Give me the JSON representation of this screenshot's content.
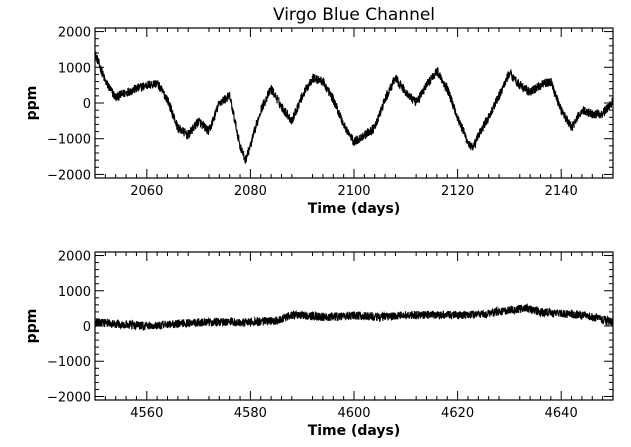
{
  "chart_data": [
    {
      "type": "line",
      "title": "Virgo Blue Channel",
      "xlabel": "Time (days)",
      "ylabel": "ppm",
      "xlim": [
        2050,
        2150
      ],
      "ylim": [
        -2100,
        2100
      ],
      "xticks": [
        2060,
        2080,
        2100,
        2120,
        2140
      ],
      "xtick_labels": [
        "2060",
        "2080",
        "2100",
        "2120",
        "2140"
      ],
      "yticks": [
        -2000,
        -1000,
        0,
        1000,
        2000
      ],
      "ytick_labels": [
        "−2000",
        "−1000",
        "0",
        "1000",
        "2000"
      ],
      "noise_amplitude": 130,
      "series": [
        {
          "color": "#000000",
          "x": [
            2050,
            2052,
            2054,
            2056,
            2058,
            2060,
            2062,
            2064,
            2066,
            2068,
            2070,
            2072,
            2074,
            2076,
            2078,
            2079,
            2080,
            2082,
            2084,
            2086,
            2088,
            2090,
            2092,
            2094,
            2096,
            2098,
            2100,
            2102,
            2104,
            2106,
            2108,
            2110,
            2112,
            2114,
            2116,
            2118,
            2120,
            2122,
            2123,
            2124,
            2126,
            2128,
            2130,
            2132,
            2134,
            2136,
            2138,
            2140,
            2142,
            2144,
            2146,
            2148,
            2150
          ],
          "y": [
            1400,
            600,
            150,
            300,
            400,
            500,
            550,
            100,
            -700,
            -900,
            -500,
            -800,
            0,
            200,
            -1200,
            -1600,
            -1200,
            -200,
            400,
            -100,
            -500,
            200,
            700,
            600,
            100,
            -600,
            -1100,
            -900,
            -700,
            100,
            700,
            300,
            0,
            500,
            900,
            400,
            -400,
            -1100,
            -1300,
            -900,
            -400,
            200,
            850,
            500,
            300,
            500,
            600,
            -200,
            -700,
            -200,
            -300,
            -300,
            50
          ]
        }
      ]
    },
    {
      "type": "line",
      "title": "",
      "xlabel": "Time (days)",
      "ylabel": "ppm",
      "xlim": [
        4550,
        4650
      ],
      "ylim": [
        -2100,
        2100
      ],
      "xticks": [
        4560,
        4580,
        4600,
        4620,
        4640
      ],
      "xtick_labels": [
        "4560",
        "4580",
        "4600",
        "4620",
        "4640"
      ],
      "yticks": [
        -2000,
        -1000,
        0,
        1000,
        2000
      ],
      "ytick_labels": [
        "−2000",
        "−1000",
        "0",
        "1000",
        "2000"
      ],
      "noise_amplitude": 120,
      "series": [
        {
          "color": "#000000",
          "x": [
            4550,
            4555,
            4560,
            4565,
            4570,
            4575,
            4580,
            4585,
            4588,
            4590,
            4595,
            4600,
            4605,
            4610,
            4615,
            4620,
            4625,
            4630,
            4633,
            4636,
            4640,
            4645,
            4650
          ],
          "y": [
            100,
            50,
            0,
            50,
            100,
            120,
            100,
            150,
            300,
            300,
            250,
            300,
            250,
            300,
            320,
            300,
            350,
            450,
            500,
            400,
            350,
            300,
            100
          ]
        }
      ]
    }
  ]
}
